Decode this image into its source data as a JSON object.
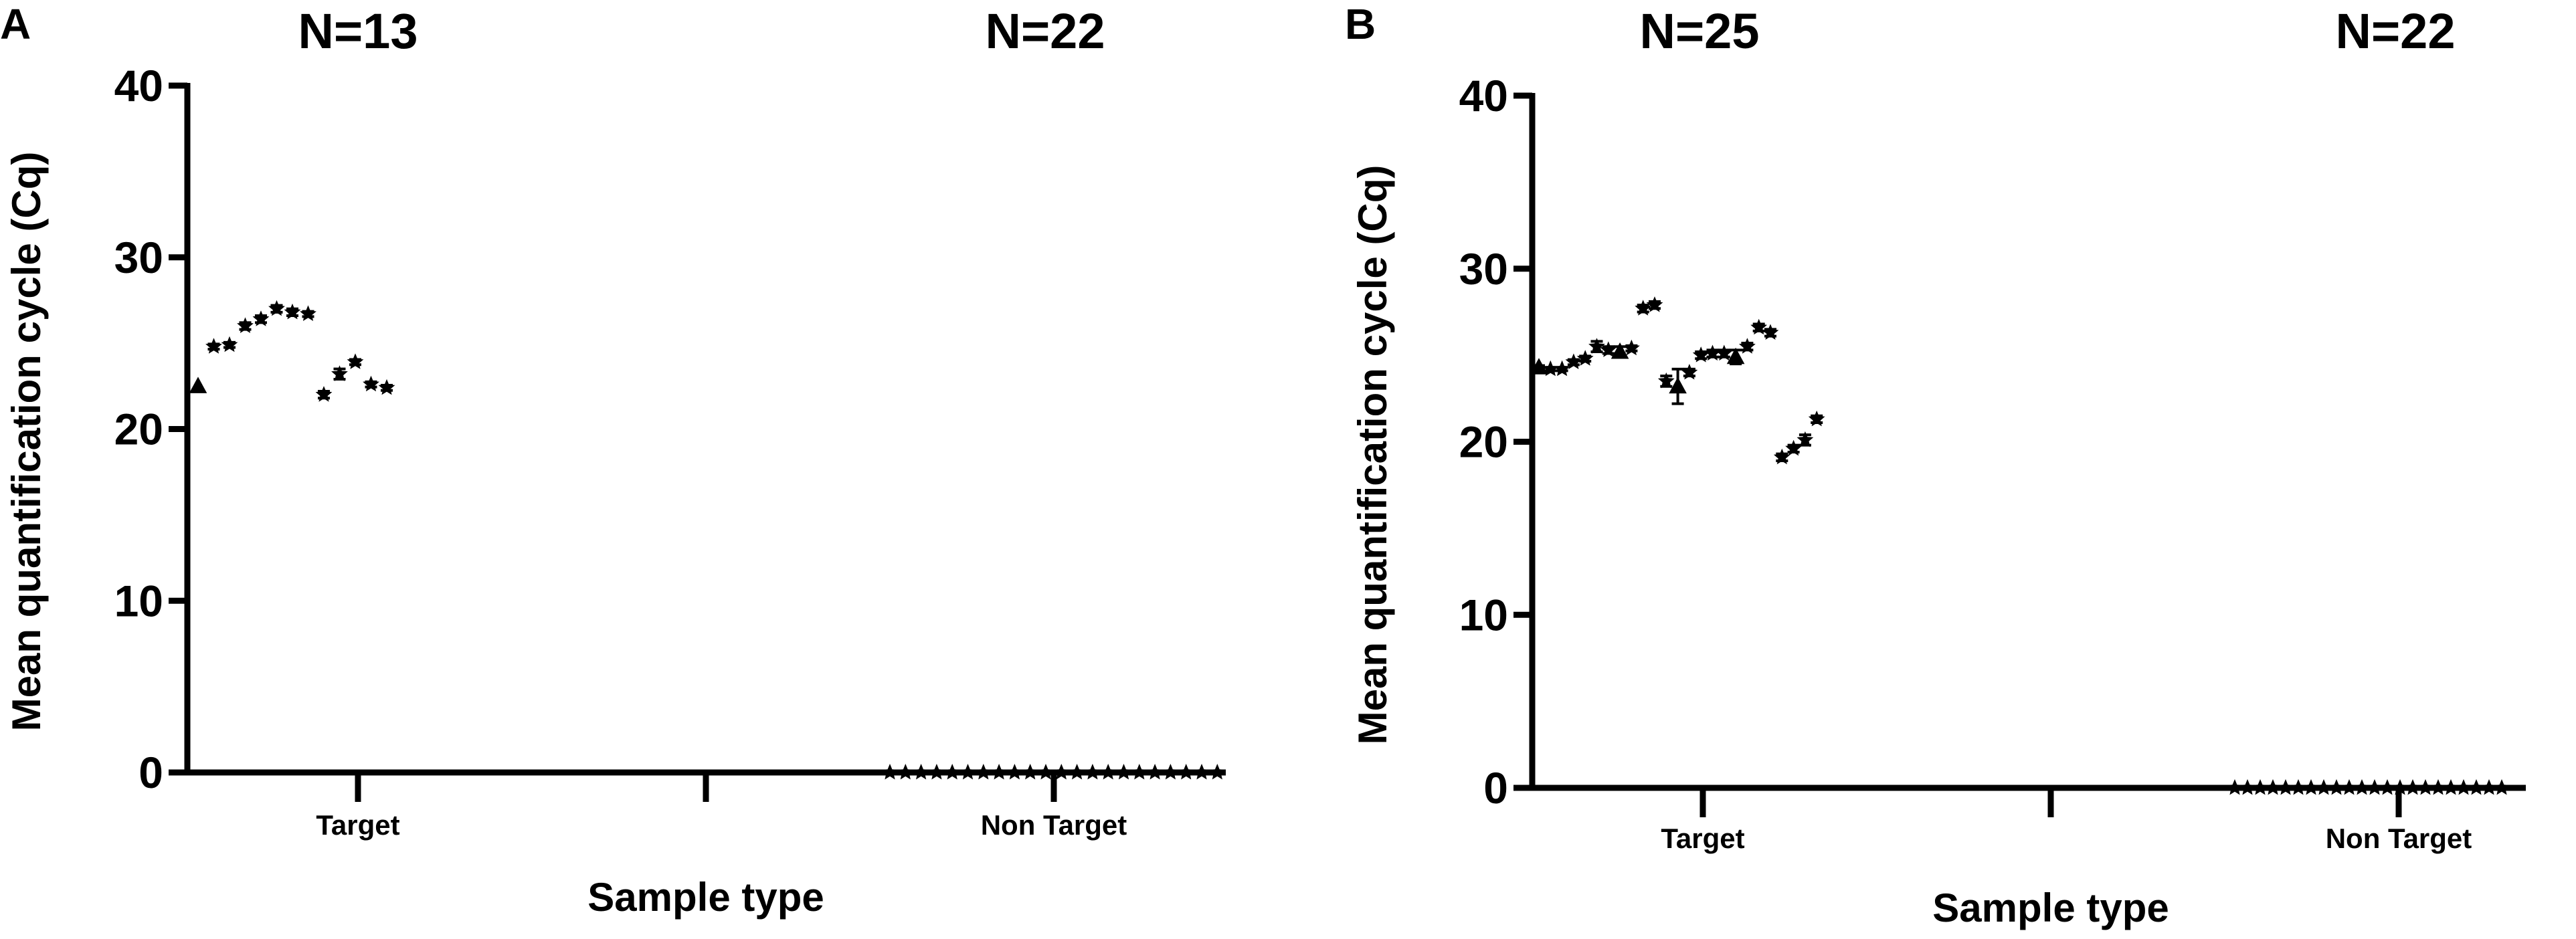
{
  "chart_data": [
    {
      "type": "scatter",
      "panel": "A",
      "ylabel": "Mean quantification cycle (Cq)",
      "xlabel": "Sample type",
      "ylim": [
        0,
        40
      ],
      "yticks": [
        "0",
        "10",
        "20",
        "30",
        "40"
      ],
      "categories": [
        "Target",
        "Non Target"
      ],
      "group_labels": [
        "N=13",
        "N=22"
      ],
      "grid": false,
      "series": [
        {
          "category": "Target",
          "points": [
            {
              "y": 22.5,
              "err": 0.0,
              "marker": "triangle"
            },
            {
              "y": 24.8,
              "err": 0.15,
              "marker": "star"
            },
            {
              "y": 24.9,
              "err": 0.15,
              "marker": "star"
            },
            {
              "y": 26.0,
              "err": 0.2,
              "marker": "star"
            },
            {
              "y": 26.4,
              "err": 0.2,
              "marker": "star"
            },
            {
              "y": 27.0,
              "err": 0.2,
              "marker": "star"
            },
            {
              "y": 26.8,
              "err": 0.2,
              "marker": "star"
            },
            {
              "y": 26.7,
              "err": 0.15,
              "marker": "star"
            },
            {
              "y": 22.0,
              "err": 0.2,
              "marker": "star"
            },
            {
              "y": 23.2,
              "err": 0.3,
              "marker": "star"
            },
            {
              "y": 23.9,
              "err": 0.15,
              "marker": "star"
            },
            {
              "y": 22.6,
              "err": 0.15,
              "marker": "star"
            },
            {
              "y": 22.4,
              "err": 0.15,
              "marker": "star"
            }
          ]
        },
        {
          "category": "Non Target",
          "points": [
            {
              "y": 0,
              "err": 0,
              "marker": "star"
            },
            {
              "y": 0,
              "err": 0,
              "marker": "star"
            },
            {
              "y": 0,
              "err": 0,
              "marker": "star"
            },
            {
              "y": 0,
              "err": 0,
              "marker": "star"
            },
            {
              "y": 0,
              "err": 0,
              "marker": "star"
            },
            {
              "y": 0,
              "err": 0,
              "marker": "star"
            },
            {
              "y": 0,
              "err": 0,
              "marker": "star"
            },
            {
              "y": 0,
              "err": 0,
              "marker": "star"
            },
            {
              "y": 0,
              "err": 0,
              "marker": "star"
            },
            {
              "y": 0,
              "err": 0,
              "marker": "star"
            },
            {
              "y": 0,
              "err": 0,
              "marker": "star"
            },
            {
              "y": 0,
              "err": 0,
              "marker": "star"
            },
            {
              "y": 0,
              "err": 0,
              "marker": "star"
            },
            {
              "y": 0,
              "err": 0,
              "marker": "star"
            },
            {
              "y": 0,
              "err": 0,
              "marker": "star"
            },
            {
              "y": 0,
              "err": 0,
              "marker": "star"
            },
            {
              "y": 0,
              "err": 0,
              "marker": "star"
            },
            {
              "y": 0,
              "err": 0,
              "marker": "star"
            },
            {
              "y": 0,
              "err": 0,
              "marker": "star"
            },
            {
              "y": 0,
              "err": 0,
              "marker": "star"
            },
            {
              "y": 0,
              "err": 0,
              "marker": "star"
            },
            {
              "y": 0,
              "err": 0,
              "marker": "star"
            }
          ]
        }
      ]
    },
    {
      "type": "scatter",
      "panel": "B",
      "ylabel": "Mean quantification cycle (Cq)",
      "xlabel": "Sample type",
      "ylim": [
        0,
        40
      ],
      "yticks": [
        "0",
        "10",
        "20",
        "30",
        "40"
      ],
      "categories": [
        "Target",
        "Non Target"
      ],
      "group_labels": [
        "N=25",
        "N=22"
      ],
      "grid": false,
      "series": [
        {
          "category": "Target",
          "points": [
            {
              "y": 24.3,
              "err": 0.1,
              "marker": "triangle"
            },
            {
              "y": 24.2,
              "err": 0.1,
              "marker": "star"
            },
            {
              "y": 24.2,
              "err": 0.1,
              "marker": "star"
            },
            {
              "y": 24.6,
              "err": 0.15,
              "marker": "star"
            },
            {
              "y": 24.8,
              "err": 0.15,
              "marker": "star"
            },
            {
              "y": 25.5,
              "err": 0.3,
              "marker": "star"
            },
            {
              "y": 25.3,
              "err": 0.2,
              "marker": "star"
            },
            {
              "y": 25.2,
              "err": 0.3,
              "marker": "triangle"
            },
            {
              "y": 25.4,
              "err": 0.15,
              "marker": "star"
            },
            {
              "y": 27.7,
              "err": 0.2,
              "marker": "star"
            },
            {
              "y": 27.9,
              "err": 0.2,
              "marker": "star"
            },
            {
              "y": 23.5,
              "err": 0.3,
              "marker": "star"
            },
            {
              "y": 23.2,
              "err": 1.0,
              "marker": "triangle"
            },
            {
              "y": 24.0,
              "err": 0.2,
              "marker": "star"
            },
            {
              "y": 25.0,
              "err": 0.2,
              "marker": "star"
            },
            {
              "y": 25.1,
              "err": 0.2,
              "marker": "star"
            },
            {
              "y": 25.1,
              "err": 0.2,
              "marker": "star"
            },
            {
              "y": 24.9,
              "err": 0.4,
              "marker": "triangle"
            },
            {
              "y": 25.5,
              "err": 0.2,
              "marker": "star"
            },
            {
              "y": 26.6,
              "err": 0.2,
              "marker": "star"
            },
            {
              "y": 26.3,
              "err": 0.2,
              "marker": "star"
            },
            {
              "y": 19.1,
              "err": 0.2,
              "marker": "star"
            },
            {
              "y": 19.6,
              "err": 0.2,
              "marker": "star"
            },
            {
              "y": 20.1,
              "err": 0.3,
              "marker": "star"
            },
            {
              "y": 21.3,
              "err": 0.2,
              "marker": "star"
            }
          ]
        },
        {
          "category": "Non Target",
          "points": [
            {
              "y": 0,
              "err": 0,
              "marker": "star"
            },
            {
              "y": 0,
              "err": 0,
              "marker": "star"
            },
            {
              "y": 0,
              "err": 0,
              "marker": "star"
            },
            {
              "y": 0,
              "err": 0,
              "marker": "star"
            },
            {
              "y": 0,
              "err": 0,
              "marker": "star"
            },
            {
              "y": 0,
              "err": 0,
              "marker": "star"
            },
            {
              "y": 0,
              "err": 0,
              "marker": "star"
            },
            {
              "y": 0,
              "err": 0,
              "marker": "star"
            },
            {
              "y": 0,
              "err": 0,
              "marker": "star"
            },
            {
              "y": 0,
              "err": 0,
              "marker": "star"
            },
            {
              "y": 0,
              "err": 0,
              "marker": "star"
            },
            {
              "y": 0,
              "err": 0,
              "marker": "star"
            },
            {
              "y": 0,
              "err": 0,
              "marker": "star"
            },
            {
              "y": 0,
              "err": 0,
              "marker": "star"
            },
            {
              "y": 0,
              "err": 0,
              "marker": "star"
            },
            {
              "y": 0,
              "err": 0,
              "marker": "star"
            },
            {
              "y": 0,
              "err": 0,
              "marker": "star"
            },
            {
              "y": 0,
              "err": 0,
              "marker": "star"
            },
            {
              "y": 0,
              "err": 0,
              "marker": "star"
            },
            {
              "y": 0,
              "err": 0,
              "marker": "star"
            },
            {
              "y": 0,
              "err": 0,
              "marker": "star"
            },
            {
              "y": 0,
              "err": 0,
              "marker": "star"
            }
          ]
        }
      ]
    }
  ]
}
